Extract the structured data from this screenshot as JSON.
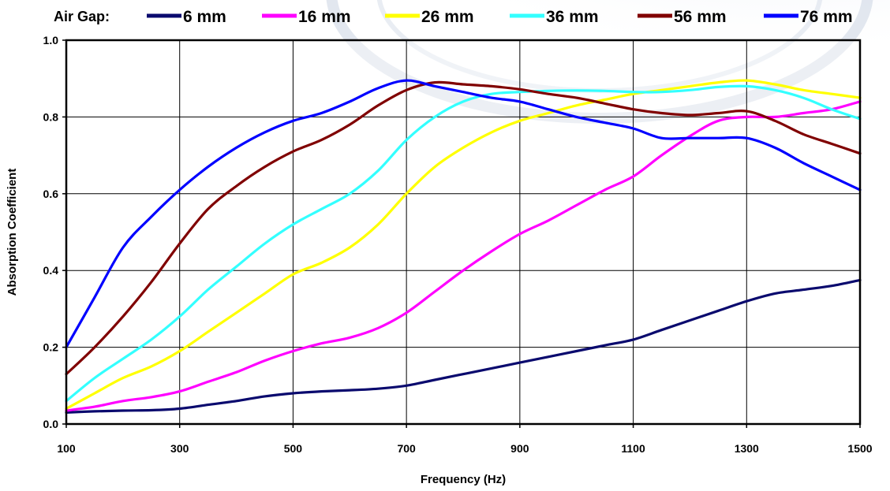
{
  "chart_data": {
    "type": "line",
    "xlabel": "Frequency (Hz)",
    "ylabel": "Absorption Coefficient",
    "xlim": [
      100,
      1500
    ],
    "ylim": [
      0,
      1
    ],
    "x_ticks": [
      "100",
      "300",
      "500",
      "700",
      "900",
      "1100",
      "1300",
      "1500"
    ],
    "y_ticks": [
      "0.0",
      "0.2",
      "0.4",
      "0.6",
      "0.8",
      "1.0"
    ],
    "grid": true,
    "legend_title": "Air Gap:",
    "legend_position": "top",
    "x": [
      100,
      150,
      200,
      250,
      300,
      350,
      400,
      450,
      500,
      550,
      600,
      650,
      700,
      750,
      800,
      850,
      900,
      950,
      1000,
      1050,
      1100,
      1150,
      1200,
      1250,
      1300,
      1350,
      1400,
      1450,
      1500
    ],
    "series": [
      {
        "name": "6 mm",
        "color": "#0a0a6e",
        "values": [
          0.03,
          0.033,
          0.035,
          0.036,
          0.04,
          0.05,
          0.06,
          0.072,
          0.08,
          0.085,
          0.088,
          0.092,
          0.1,
          0.115,
          0.13,
          0.145,
          0.16,
          0.175,
          0.19,
          0.205,
          0.22,
          0.245,
          0.27,
          0.295,
          0.32,
          0.34,
          0.35,
          0.36,
          0.375
        ]
      },
      {
        "name": "16 mm",
        "color": "#ff00ff",
        "values": [
          0.035,
          0.045,
          0.06,
          0.07,
          0.085,
          0.11,
          0.135,
          0.165,
          0.19,
          0.21,
          0.225,
          0.25,
          0.29,
          0.345,
          0.4,
          0.45,
          0.495,
          0.53,
          0.57,
          0.61,
          0.645,
          0.7,
          0.75,
          0.79,
          0.8,
          0.8,
          0.81,
          0.82,
          0.84
        ]
      },
      {
        "name": "26 mm",
        "color": "#ffff00",
        "values": [
          0.04,
          0.08,
          0.12,
          0.15,
          0.19,
          0.24,
          0.29,
          0.34,
          0.39,
          0.42,
          0.46,
          0.52,
          0.6,
          0.67,
          0.72,
          0.76,
          0.79,
          0.81,
          0.83,
          0.845,
          0.86,
          0.87,
          0.88,
          0.89,
          0.895,
          0.885,
          0.87,
          0.86,
          0.85
        ]
      },
      {
        "name": "36 mm",
        "color": "#33ffff",
        "values": [
          0.06,
          0.12,
          0.17,
          0.22,
          0.28,
          0.35,
          0.41,
          0.47,
          0.52,
          0.56,
          0.6,
          0.66,
          0.74,
          0.8,
          0.84,
          0.86,
          0.865,
          0.868,
          0.869,
          0.868,
          0.865,
          0.865,
          0.87,
          0.878,
          0.88,
          0.87,
          0.85,
          0.82,
          0.795
        ]
      },
      {
        "name": "56 mm",
        "color": "#800000",
        "values": [
          0.13,
          0.2,
          0.28,
          0.37,
          0.47,
          0.56,
          0.62,
          0.67,
          0.71,
          0.74,
          0.78,
          0.83,
          0.87,
          0.89,
          0.885,
          0.88,
          0.872,
          0.86,
          0.85,
          0.835,
          0.82,
          0.81,
          0.805,
          0.81,
          0.815,
          0.79,
          0.755,
          0.73,
          0.705
        ]
      },
      {
        "name": "76 mm",
        "color": "#0000ff",
        "values": [
          0.2,
          0.33,
          0.46,
          0.54,
          0.61,
          0.67,
          0.72,
          0.76,
          0.79,
          0.81,
          0.84,
          0.875,
          0.895,
          0.88,
          0.865,
          0.85,
          0.84,
          0.82,
          0.8,
          0.785,
          0.77,
          0.745,
          0.745,
          0.745,
          0.745,
          0.72,
          0.68,
          0.645,
          0.61
        ]
      }
    ]
  }
}
